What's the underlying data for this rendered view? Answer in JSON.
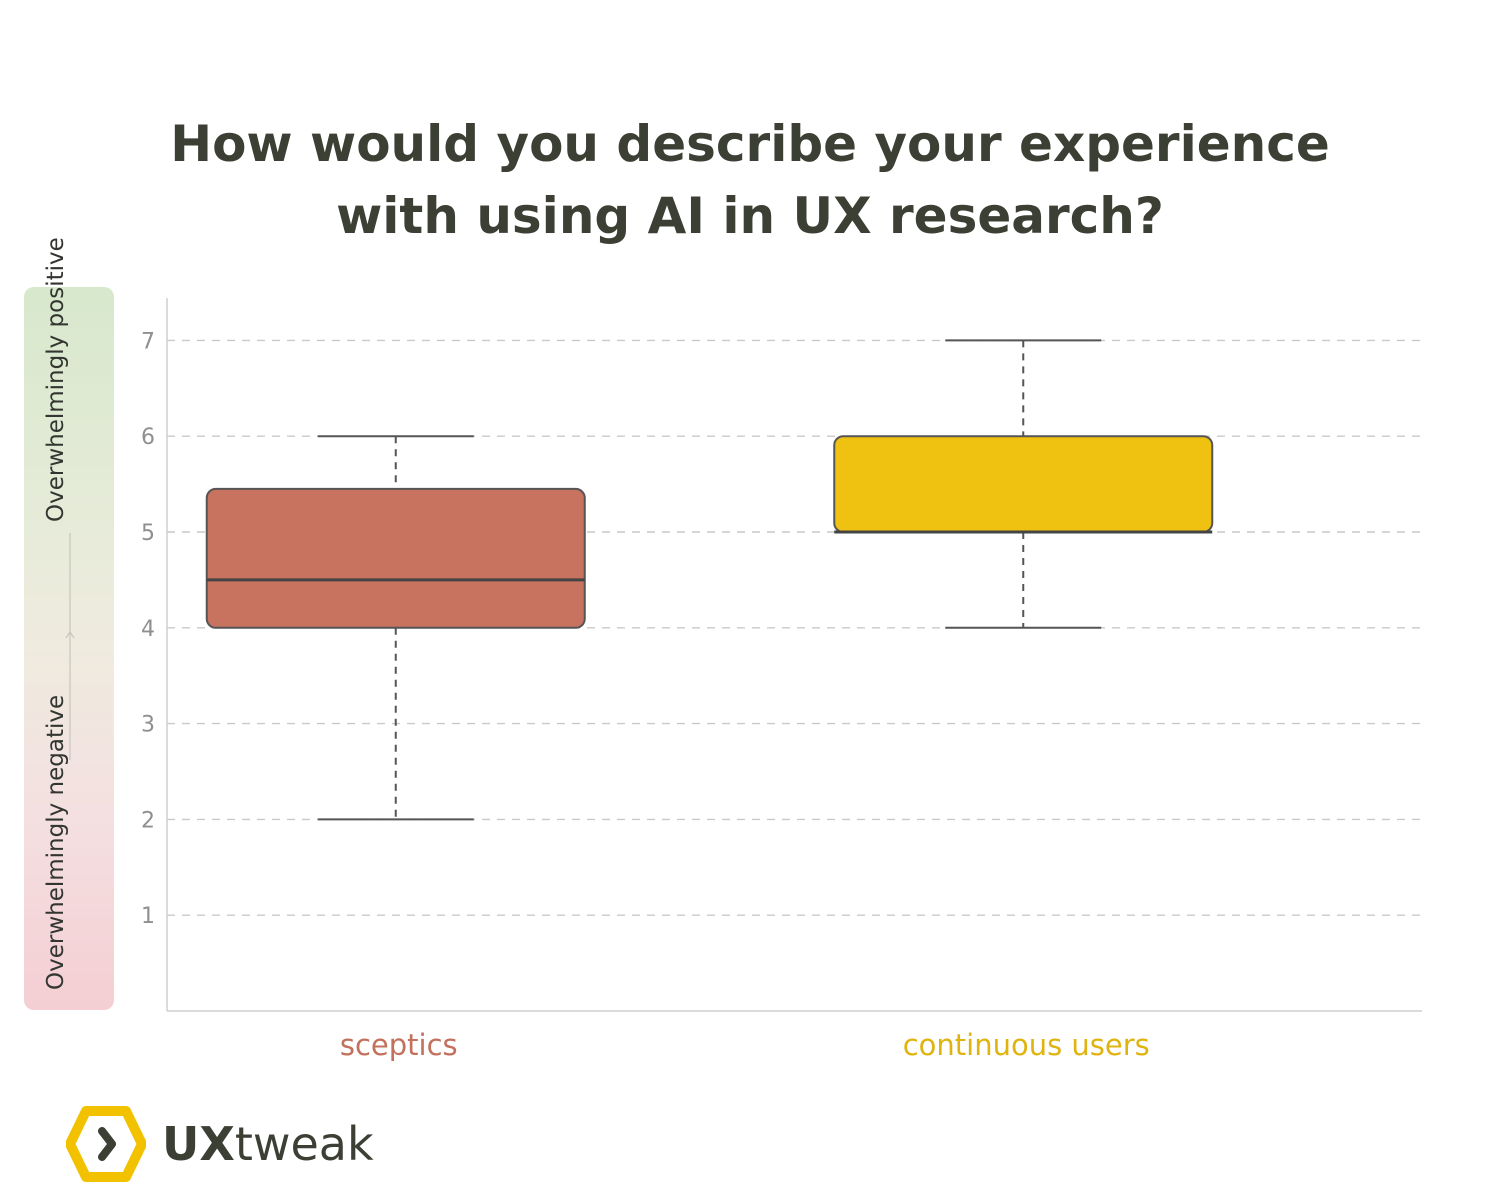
{
  "title_lines": [
    "How would you describe your experience",
    "with using AI in UX research?"
  ],
  "scale": {
    "positive_label": "Overwhelmingly positive",
    "negative_label": "Overwhelmingly negative",
    "positive_color": "#d7e8cc",
    "negative_color": "#f4ced2"
  },
  "chart_data": {
    "type": "box",
    "title": "How would you describe your experience with using AI in UX research?",
    "categories": [
      "sceptics",
      "continuous users"
    ],
    "series": [
      {
        "name": "sceptics",
        "color": "#c87260",
        "label_color": "#c3705c",
        "min": 2,
        "q1": 4,
        "median": 4.5,
        "q3": 5.45,
        "max": 6
      },
      {
        "name": "continuous users",
        "color": "#efc111",
        "label_color": "#e0b410",
        "min": 4,
        "q1": 5,
        "median": 5,
        "q3": 6,
        "max": 7
      }
    ],
    "yticks": [
      1,
      2,
      3,
      4,
      5,
      6,
      7
    ],
    "ylim": [
      0,
      7.4
    ],
    "grid": true,
    "grid_style": "dashed"
  },
  "logo": {
    "ux": "UX",
    "rest": "tweak",
    "icon": "hexagon-chevron-icon",
    "color": "#f2c200"
  }
}
